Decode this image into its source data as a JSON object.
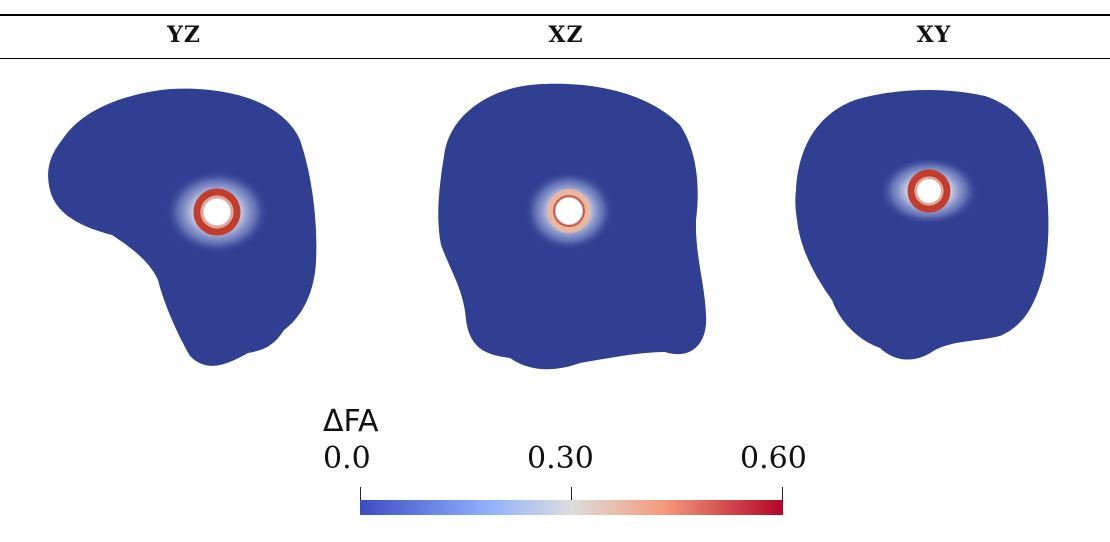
{
  "table": {
    "columns": [
      "YZ",
      "XZ",
      "XY"
    ]
  },
  "colorbar": {
    "title": "ΔFA",
    "tick_labels": [
      "0.0",
      "0.30",
      "0.60"
    ],
    "range": [
      0.0,
      0.6
    ],
    "colormap": "cool-to-warm",
    "colors": {
      "low": "#3b4cc0",
      "mid": "#dddddd",
      "high": "#b40426"
    }
  },
  "panels": {
    "background_color": "#303f92",
    "hot_ring_color": "#c43c2c"
  }
}
